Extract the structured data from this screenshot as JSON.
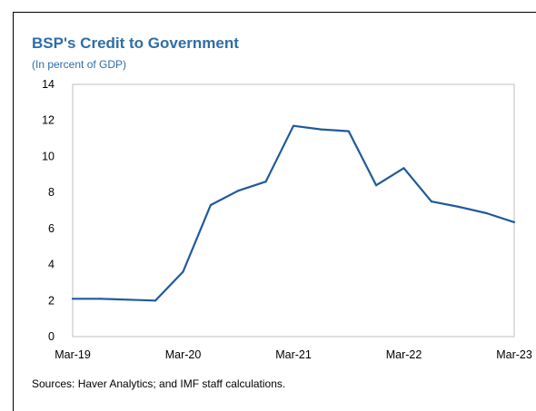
{
  "title": "BSP's Credit to Government",
  "subtitle": "(In percent of GDP)",
  "source": "Sources: Haver Analytics; and IMF staff calculations.",
  "chart_data": {
    "type": "line",
    "title": "BSP's Credit to Government",
    "subtitle": "(In percent of GDP)",
    "xlabel": "",
    "ylabel": "",
    "ylim": [
      0,
      14
    ],
    "yticks": [
      0,
      2,
      4,
      6,
      8,
      10,
      12,
      14
    ],
    "xtick_labels": [
      "Mar-19",
      "Mar-20",
      "Mar-21",
      "Mar-22",
      "Mar-23"
    ],
    "grid": false,
    "line_color": "#1f5a9a",
    "x": [
      "Mar-19",
      "Jun-19",
      "Sep-19",
      "Dec-19",
      "Mar-20",
      "Jun-20",
      "Sep-20",
      "Dec-20",
      "Mar-21",
      "Jun-21",
      "Sep-21",
      "Dec-21",
      "Mar-22",
      "Jun-22",
      "Sep-22",
      "Dec-22",
      "Mar-23"
    ],
    "series": [
      {
        "values": [
          2.1,
          2.1,
          2.05,
          2.0,
          3.6,
          7.3,
          8.1,
          8.6,
          11.7,
          11.5,
          11.4,
          8.4,
          9.35,
          7.5,
          7.2,
          6.85,
          6.35
        ]
      }
    ]
  }
}
